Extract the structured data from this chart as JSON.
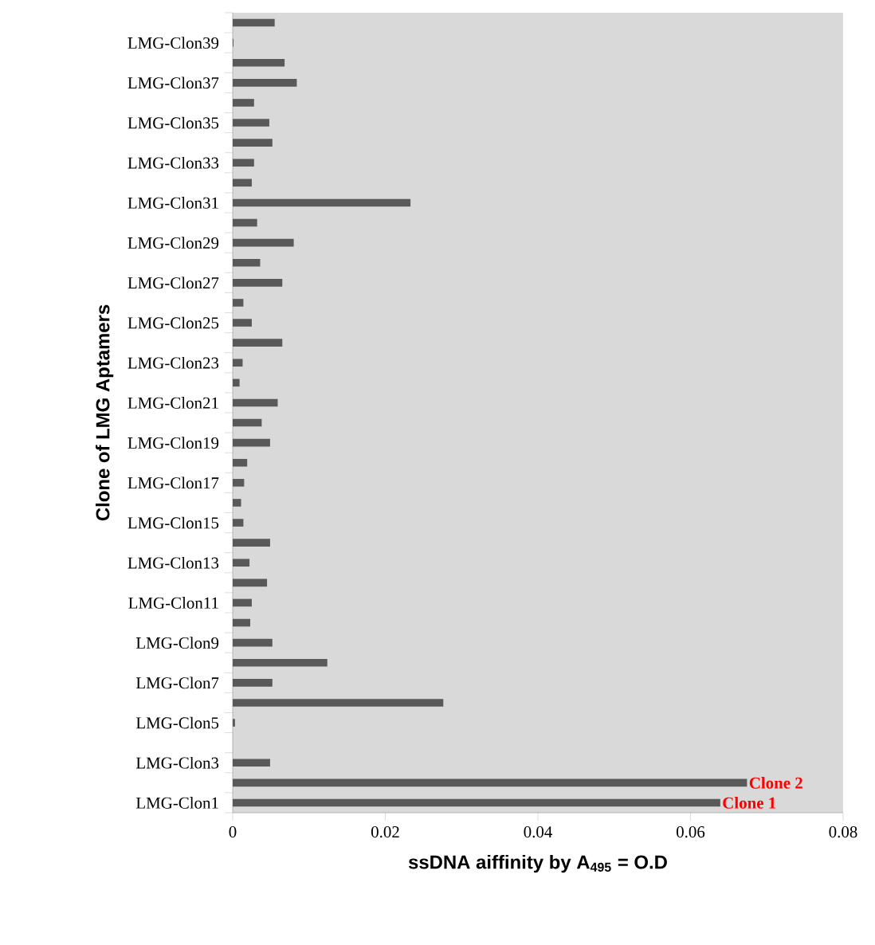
{
  "chart_data": {
    "type": "bar",
    "orientation": "horizontal",
    "xlabel": "ssDNA aiffinity  by A$_{495}$ = O.D",
    "ylabel": "Clone of LMG Aptamers",
    "categories": [
      null,
      "LMG-Clon39",
      null,
      "LMG-Clon37",
      null,
      "LMG-Clon35",
      null,
      "LMG-Clon33",
      null,
      "LMG-Clon31",
      null,
      "LMG-Clon29",
      null,
      "LMG-Clon27",
      null,
      "LMG-Clon25",
      null,
      "LMG-Clon23",
      null,
      "LMG-Clon21",
      null,
      "LMG-Clon19",
      null,
      "LMG-Clon17",
      null,
      "LMG-Clon15",
      null,
      "LMG-Clon13",
      null,
      "LMG-Clon11",
      null,
      "LMG-Clon9",
      null,
      "LMG-Clon7",
      null,
      "LMG-Clon5",
      null,
      "LMG-Clon3",
      null,
      "LMG-Clon1"
    ],
    "values": [
      0.0055,
      0.0001,
      0.0068,
      0.0084,
      0.0028,
      0.0048,
      0.0052,
      0.0028,
      0.0025,
      0.0233,
      0.0032,
      0.008,
      0.0036,
      0.0065,
      0.0014,
      0.0025,
      0.0065,
      0.0013,
      0.0009,
      0.0059,
      0.0038,
      0.0049,
      0.0019,
      0.0015,
      0.0011,
      0.0014,
      0.0049,
      0.0022,
      0.0045,
      0.0025,
      0.0023,
      0.0052,
      0.0124,
      0.0052,
      0.0276,
      0.0003,
      0,
      0.0049,
      0.0674,
      0.0639
    ],
    "color": "#595959",
    "xlim": [
      0,
      0.08
    ],
    "xticks": [
      0,
      0.02,
      0.04,
      0.06,
      0.08
    ],
    "annotations": [
      {
        "text": "Clone 2",
        "x": 0.0674
      },
      {
        "text": "Clone 1",
        "x": 0.0639,
        "y": "LMG-Clon1"
      }
    ]
  }
}
